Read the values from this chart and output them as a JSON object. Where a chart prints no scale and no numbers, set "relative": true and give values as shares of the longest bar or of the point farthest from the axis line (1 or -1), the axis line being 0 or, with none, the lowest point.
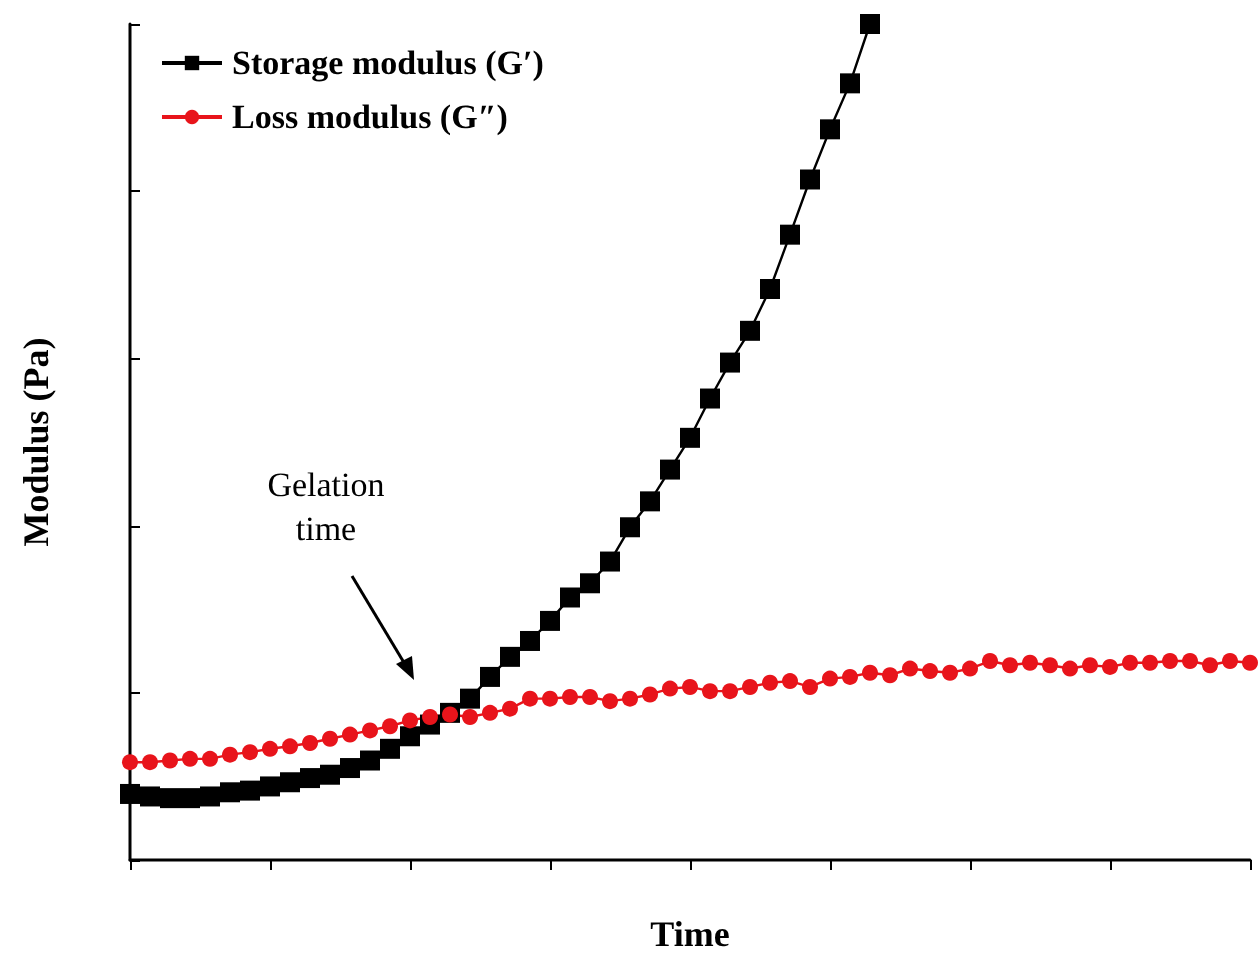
{
  "chart_data": {
    "type": "line",
    "relative": true,
    "xlabel": "Time",
    "ylabel": "Modulus (Pa)",
    "grid": false,
    "legend": "top left",
    "annotations": [
      "Gelation time"
    ],
    "categories": [
      null,
      null,
      null,
      null,
      null,
      null,
      null,
      null,
      null,
      null,
      null,
      null,
      null,
      null,
      null,
      null,
      null,
      null,
      null,
      null,
      null,
      null,
      null,
      null,
      null,
      null,
      null,
      null,
      null,
      null,
      null,
      null,
      null,
      null,
      null,
      null,
      null,
      null,
      null,
      null,
      null,
      null,
      null,
      null,
      null,
      null,
      null,
      null,
      null,
      null,
      null,
      null,
      null,
      null,
      null,
      null,
      null
    ],
    "series": [
      {
        "name": "Storage modulus (G′)",
        "color": "#000000",
        "marker": "square",
        "values": [
          0.079,
          0.076,
          0.074,
          0.074,
          0.076,
          0.081,
          0.083,
          0.088,
          0.093,
          0.098,
          0.102,
          0.11,
          0.119,
          0.133,
          0.148,
          0.162,
          0.176,
          0.193,
          0.219,
          0.243,
          0.262,
          0.286,
          0.314,
          0.331,
          0.357,
          0.398,
          0.429,
          0.467,
          0.505,
          0.552,
          0.595,
          0.633,
          0.683,
          0.748,
          0.814,
          0.874,
          0.929,
          1,
          null,
          null,
          null,
          null,
          null,
          null,
          null,
          null,
          null,
          null,
          null,
          null,
          null,
          null,
          null,
          null,
          null,
          null,
          null
        ]
      },
      {
        "name": "Loss modulus (G″)",
        "color": "#e8141b",
        "marker": "circle",
        "values": [
          0.117,
          0.117,
          0.119,
          0.121,
          0.121,
          0.126,
          0.129,
          0.133,
          0.136,
          0.14,
          0.145,
          0.15,
          0.155,
          0.16,
          0.167,
          0.171,
          0.174,
          0.171,
          0.176,
          0.181,
          0.193,
          0.193,
          0.195,
          0.195,
          0.19,
          0.193,
          0.198,
          0.205,
          0.207,
          0.202,
          0.202,
          0.207,
          0.212,
          0.214,
          0.207,
          0.217,
          0.219,
          0.224,
          0.221,
          0.229,
          0.226,
          0.224,
          0.229,
          0.238,
          0.233,
          0.236,
          0.233,
          0.229,
          0.233,
          0.231,
          0.236,
          0.236,
          0.238,
          0.238,
          0.233,
          0.238,
          0.236
        ]
      }
    ]
  }
}
